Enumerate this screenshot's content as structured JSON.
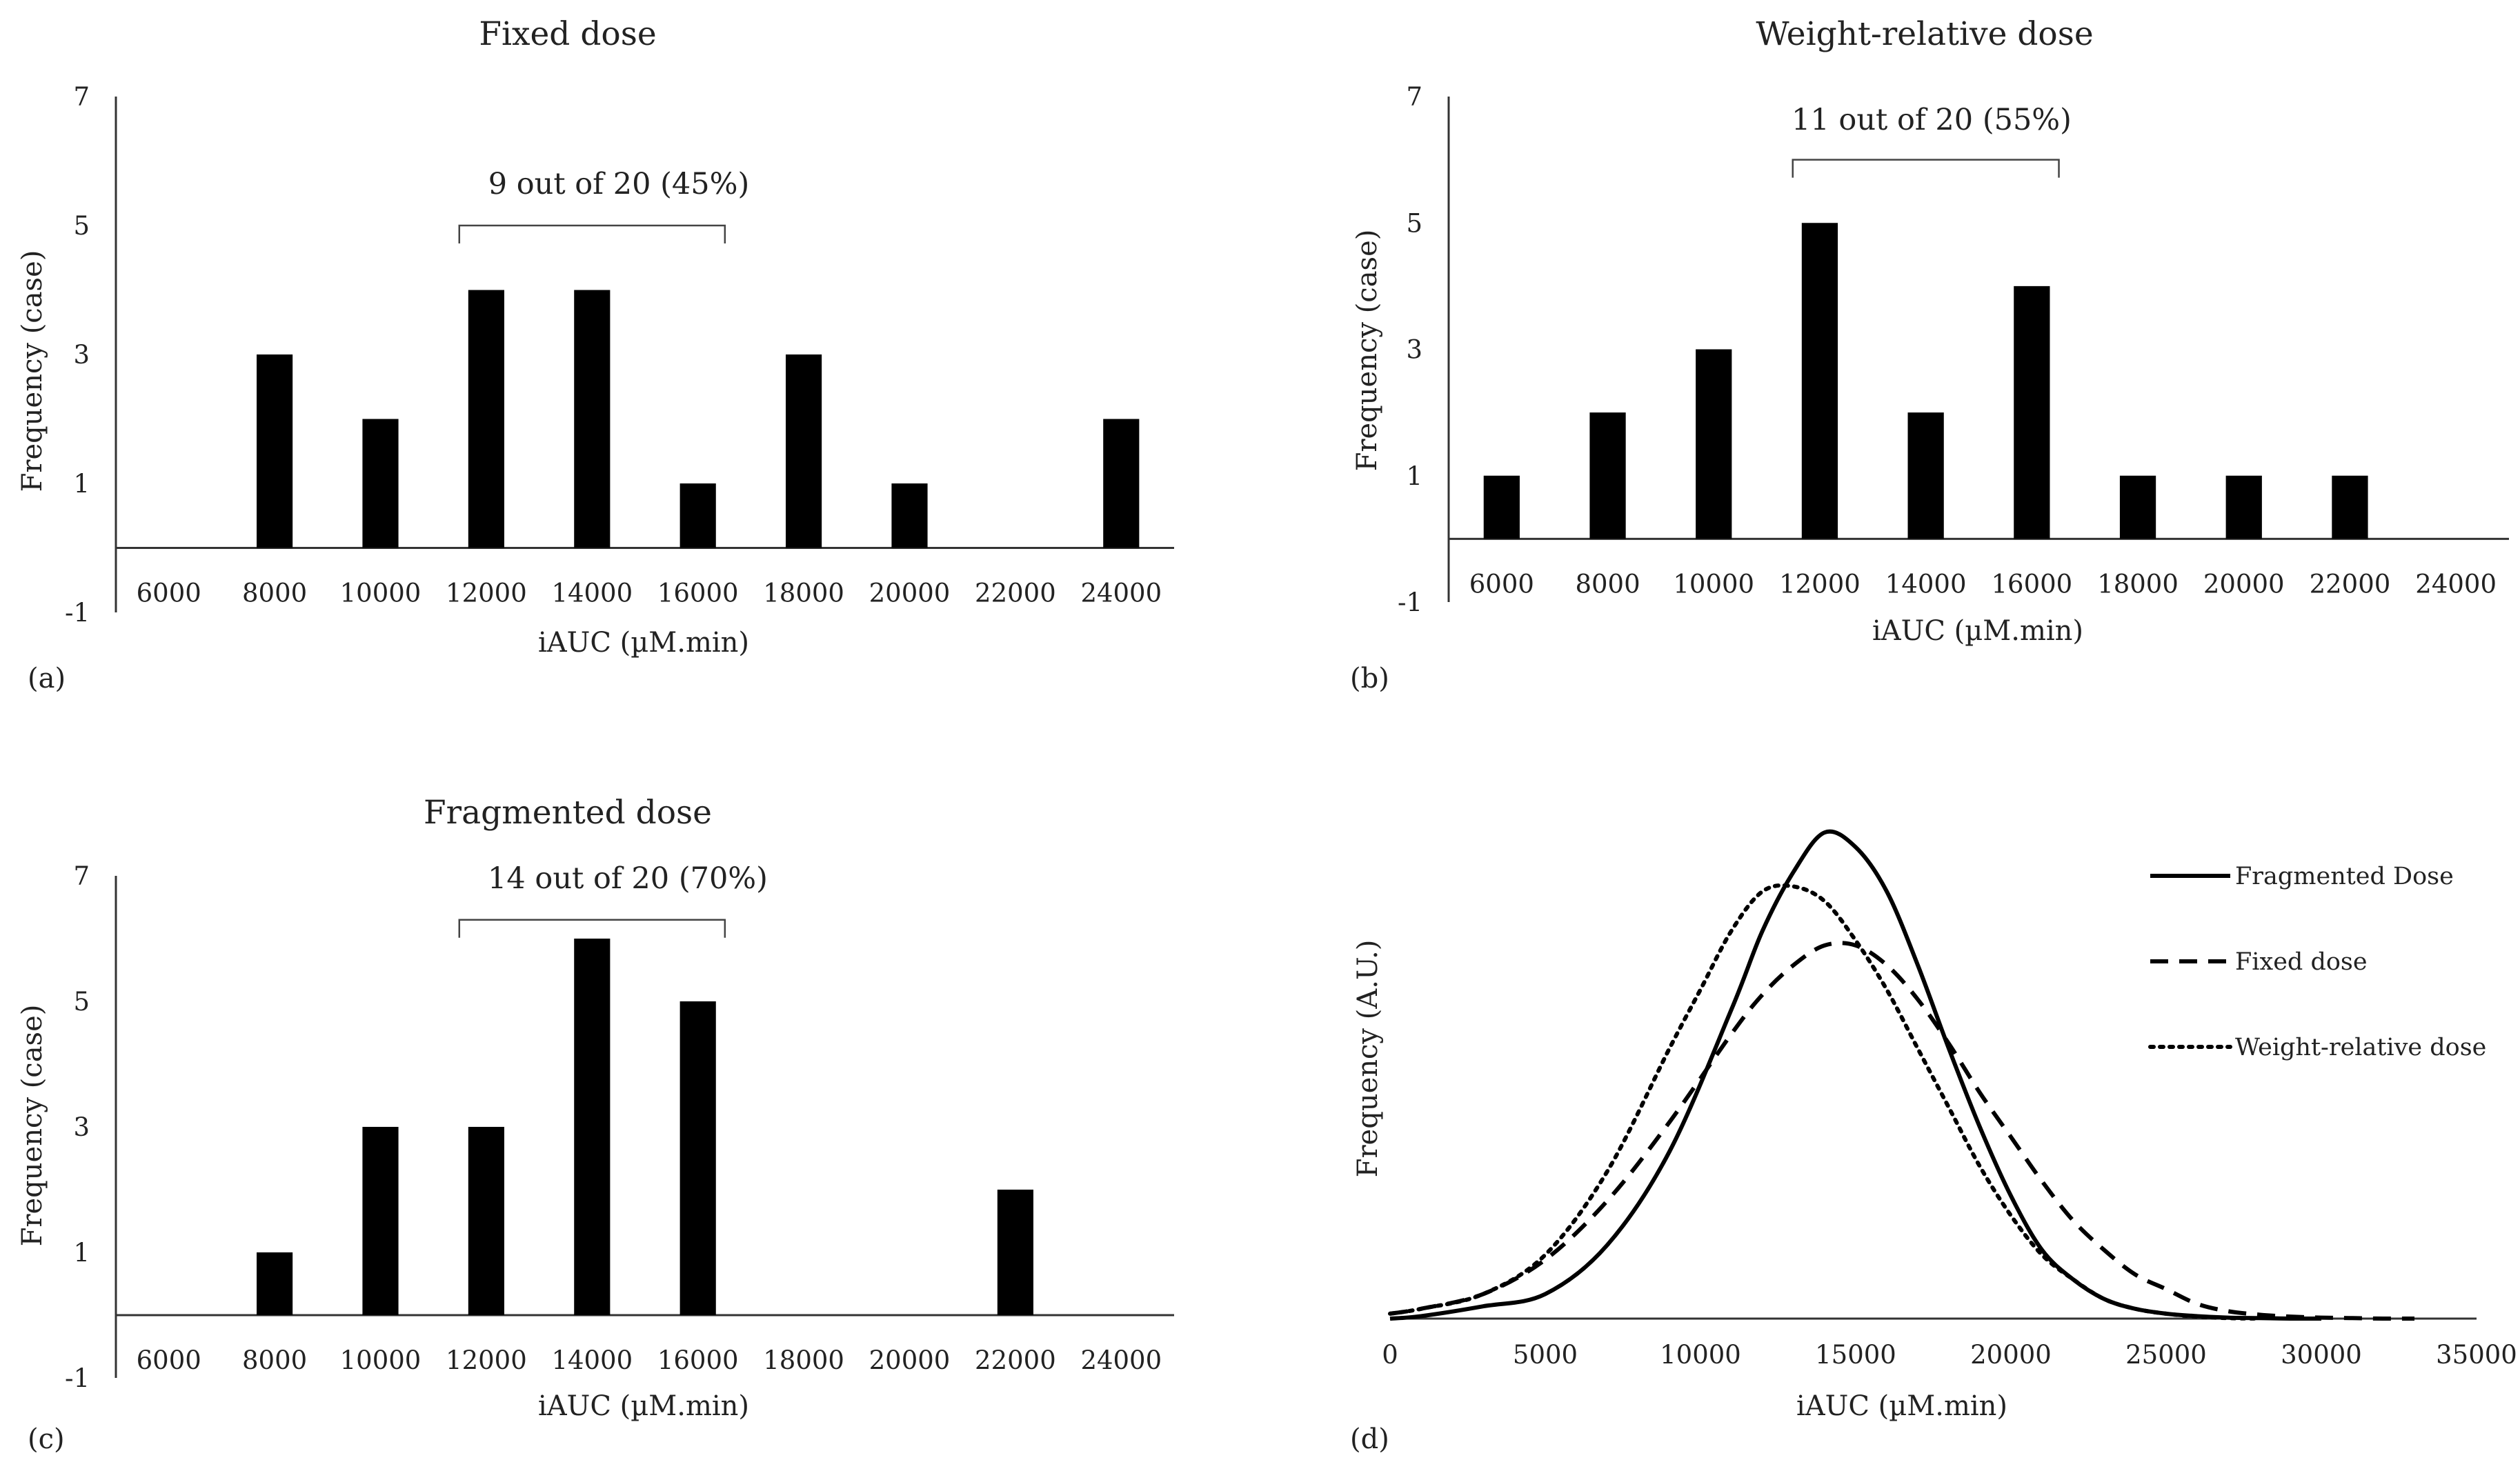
{
  "chart_data": [
    {
      "type": "bar",
      "panel_label": "(a)",
      "title": "Fixed dose",
      "xlabel": "iAUC (µM.min)",
      "ylabel": "Frequency (case)",
      "categories": [
        "6000",
        "8000",
        "10000",
        "12000",
        "14000",
        "16000",
        "18000",
        "20000",
        "22000",
        "24000"
      ],
      "values": [
        0,
        3,
        2,
        4,
        4,
        1,
        3,
        1,
        0,
        2
      ],
      "yticks": [
        "-1",
        "1",
        "3",
        "5",
        "7"
      ],
      "ylim": [
        -1,
        7
      ],
      "annotation": "9 out of 20 (45%)",
      "bracket_categories": [
        "12000",
        "16000"
      ],
      "bracket_level": 5
    },
    {
      "type": "bar",
      "panel_label": "(b)",
      "title": "Weight-relative dose",
      "xlabel": "iAUC (µM.min)",
      "ylabel": "Frequency (case)",
      "categories": [
        "6000",
        "8000",
        "10000",
        "12000",
        "14000",
        "16000",
        "18000",
        "20000",
        "22000",
        "24000"
      ],
      "values": [
        1,
        2,
        3,
        5,
        2,
        4,
        1,
        1,
        1,
        0
      ],
      "yticks": [
        "-1",
        "1",
        "3",
        "5",
        "7"
      ],
      "ylim": [
        -1,
        7
      ],
      "annotation": "11 out of 20 (55%)",
      "bracket_categories": [
        "12000",
        "16000"
      ],
      "bracket_level": 6
    },
    {
      "type": "bar",
      "panel_label": "(c)",
      "title": "Fragmented dose",
      "xlabel": "iAUC (µM.min)",
      "ylabel": "Frequency (case)",
      "categories": [
        "6000",
        "8000",
        "10000",
        "12000",
        "14000",
        "16000",
        "18000",
        "20000",
        "22000",
        "24000"
      ],
      "values": [
        0,
        1,
        3,
        3,
        6,
        5,
        0,
        0,
        2,
        0
      ],
      "yticks": [
        "-1",
        "1",
        "3",
        "5",
        "7"
      ],
      "ylim": [
        -1,
        7
      ],
      "annotation": "14 out of 20 (70%)",
      "bracket_categories": [
        "12000",
        "16000"
      ],
      "bracket_level": 6.3
    },
    {
      "type": "line",
      "panel_label": "(d)",
      "title": "",
      "xlabel": "iAUC (µM.min)",
      "ylabel": "Frequency (A.U.)",
      "xticks": [
        "0",
        "5000",
        "10000",
        "15000",
        "20000",
        "25000",
        "30000",
        "35000"
      ],
      "xlim": [
        0,
        35000
      ],
      "ylim": [
        0,
        1
      ],
      "series": [
        {
          "name": "Fragmented Dose",
          "style": "solid",
          "x": [
            0,
            1000,
            3000,
            5000,
            7000,
            9000,
            11000,
            12000,
            13000,
            14000,
            15000,
            16000,
            17000,
            18000,
            19000,
            20000,
            21000,
            22000,
            23000,
            24000,
            25000,
            26000,
            27000,
            28000,
            29000,
            30000
          ],
          "y": [
            0.0,
            0.005,
            0.025,
            0.05,
            0.15,
            0.34,
            0.63,
            0.79,
            0.91,
            0.99,
            0.96,
            0.87,
            0.72,
            0.55,
            0.39,
            0.25,
            0.14,
            0.08,
            0.04,
            0.02,
            0.01,
            0.005,
            0.002,
            0.001,
            0.0,
            0.0
          ]
        },
        {
          "name": "Fixed dose",
          "style": "dashed",
          "x": [
            0,
            1000,
            3000,
            5000,
            7000,
            9000,
            11000,
            12000,
            13000,
            14000,
            15000,
            16000,
            17000,
            18000,
            19000,
            20000,
            21000,
            22000,
            23000,
            24000,
            25000,
            26000,
            27000,
            28000,
            29000,
            30000,
            31000,
            32000,
            33000
          ],
          "y": [
            0.01,
            0.02,
            0.05,
            0.12,
            0.24,
            0.4,
            0.58,
            0.66,
            0.72,
            0.76,
            0.76,
            0.72,
            0.65,
            0.56,
            0.46,
            0.37,
            0.28,
            0.2,
            0.14,
            0.09,
            0.06,
            0.03,
            0.015,
            0.008,
            0.004,
            0.002,
            0.001,
            0.0,
            0.0
          ]
        },
        {
          "name": "Weight-relative dose",
          "style": "dotted",
          "x": [
            0,
            1000,
            3000,
            5000,
            7000,
            9000,
            10000,
            11000,
            12000,
            13000,
            14000,
            15000,
            16000,
            17000,
            18000,
            19000,
            20000,
            21000,
            22000,
            23000,
            24000,
            25000,
            26000,
            27000,
            28000
          ],
          "y": [
            0.01,
            0.02,
            0.05,
            0.13,
            0.3,
            0.55,
            0.67,
            0.79,
            0.87,
            0.88,
            0.85,
            0.77,
            0.67,
            0.55,
            0.43,
            0.31,
            0.21,
            0.13,
            0.08,
            0.04,
            0.02,
            0.01,
            0.004,
            0.001,
            0.0
          ]
        }
      ]
    }
  ]
}
